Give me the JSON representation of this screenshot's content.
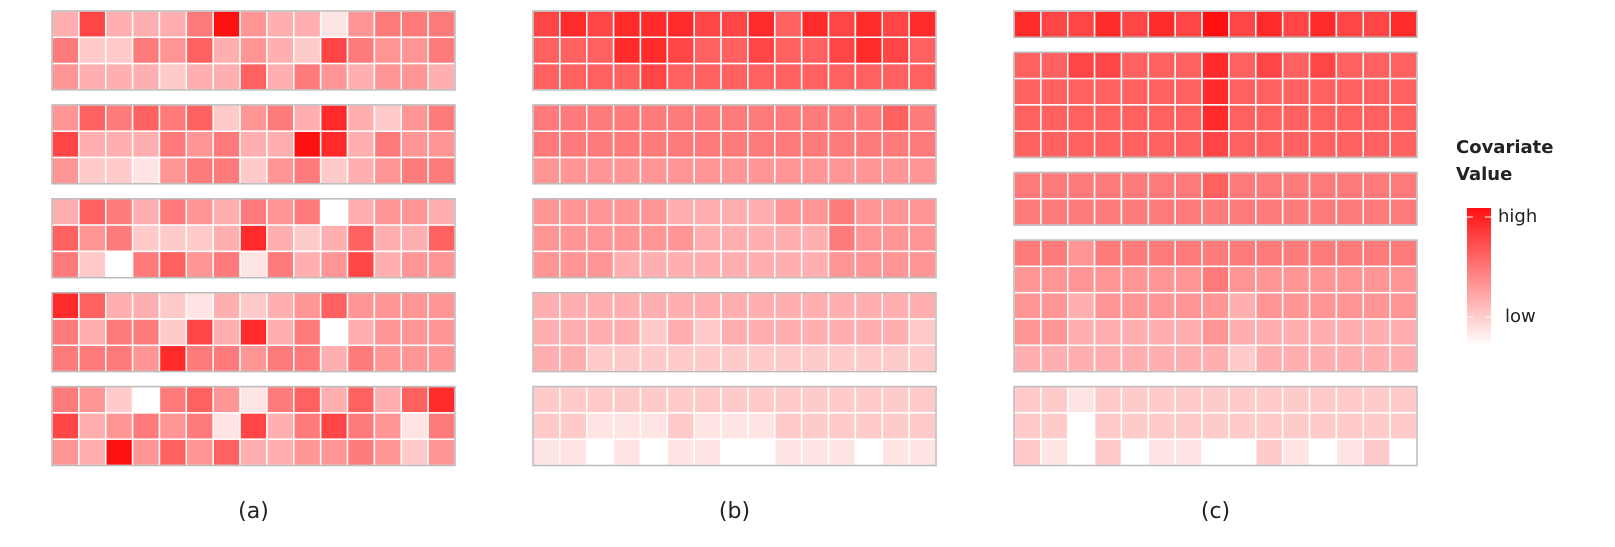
{
  "chart_data": [
    {
      "type": "heatmap",
      "label": "(a)",
      "blocks": [
        [
          [
            3,
            7,
            3,
            3,
            3,
            5,
            9,
            4,
            3,
            3,
            1,
            4,
            5,
            5,
            5
          ],
          [
            5,
            2,
            2,
            5,
            4,
            6,
            3,
            4,
            3,
            2,
            7,
            5,
            4,
            4,
            5
          ],
          [
            4,
            3,
            3,
            3,
            2,
            3,
            3,
            6,
            3,
            5,
            4,
            3,
            4,
            4,
            3
          ]
        ],
        [
          [
            4,
            6,
            5,
            6,
            5,
            6,
            2,
            4,
            5,
            3,
            8,
            3,
            2,
            4,
            5
          ],
          [
            7,
            3,
            3,
            3,
            5,
            4,
            5,
            3,
            3,
            9,
            8,
            3,
            5,
            4,
            4
          ],
          [
            4,
            2,
            2,
            1,
            4,
            5,
            5,
            2,
            4,
            5,
            2,
            3,
            4,
            5,
            5
          ]
        ],
        [
          [
            3,
            6,
            5,
            3,
            5,
            4,
            3,
            5,
            4,
            5,
            0,
            3,
            4,
            4,
            3
          ],
          [
            6,
            4,
            5,
            2,
            2,
            2,
            3,
            8,
            3,
            2,
            3,
            6,
            3,
            3,
            6
          ],
          [
            5,
            2,
            0,
            5,
            6,
            4,
            5,
            1,
            5,
            3,
            4,
            7,
            3,
            4,
            4
          ]
        ],
        [
          [
            8,
            6,
            3,
            3,
            2,
            1,
            3,
            2,
            3,
            4,
            6,
            4,
            4,
            4,
            4
          ],
          [
            5,
            3,
            5,
            5,
            2,
            7,
            3,
            8,
            3,
            5,
            0,
            3,
            4,
            4,
            4
          ],
          [
            5,
            5,
            5,
            4,
            8,
            5,
            5,
            4,
            5,
            5,
            3,
            5,
            4,
            4,
            4
          ]
        ],
        [
          [
            5,
            4,
            2,
            0,
            5,
            6,
            4,
            1,
            5,
            6,
            3,
            6,
            3,
            6,
            8
          ],
          [
            7,
            3,
            4,
            5,
            4,
            5,
            1,
            7,
            3,
            5,
            7,
            5,
            4,
            1,
            5
          ],
          [
            4,
            3,
            9,
            4,
            6,
            4,
            6,
            3,
            3,
            4,
            4,
            5,
            4,
            2,
            4
          ]
        ]
      ]
    },
    {
      "type": "heatmap",
      "label": "(b)",
      "blocks": [
        [
          [
            7,
            8,
            7,
            8,
            8,
            8,
            7,
            7,
            8,
            6,
            8,
            7,
            8,
            7,
            8
          ],
          [
            6,
            6,
            6,
            8,
            8,
            7,
            6,
            6,
            7,
            6,
            6,
            7,
            8,
            7,
            6
          ],
          [
            6,
            6,
            6,
            6,
            7,
            6,
            6,
            6,
            6,
            6,
            6,
            6,
            6,
            6,
            6
          ]
        ],
        [
          [
            5,
            5,
            5,
            5,
            5,
            5,
            5,
            5,
            5,
            5,
            5,
            5,
            5,
            6,
            5
          ],
          [
            5,
            5,
            5,
            5,
            5,
            5,
            5,
            5,
            5,
            5,
            5,
            5,
            5,
            5,
            5
          ],
          [
            4,
            4,
            4,
            4,
            4,
            4,
            4,
            4,
            4,
            4,
            4,
            4,
            4,
            4,
            4
          ]
        ],
        [
          [
            4,
            4,
            4,
            4,
            4,
            3,
            3,
            3,
            3,
            4,
            4,
            5,
            4,
            4,
            4
          ],
          [
            4,
            4,
            4,
            4,
            4,
            4,
            3,
            3,
            3,
            3,
            3,
            5,
            4,
            4,
            4
          ],
          [
            4,
            4,
            4,
            3,
            3,
            3,
            3,
            3,
            3,
            3,
            3,
            4,
            4,
            4,
            4
          ]
        ],
        [
          [
            3,
            3,
            3,
            3,
            3,
            3,
            3,
            3,
            3,
            3,
            3,
            3,
            3,
            3,
            3
          ],
          [
            3,
            3,
            3,
            3,
            2,
            3,
            2,
            3,
            3,
            3,
            3,
            3,
            3,
            3,
            2
          ],
          [
            3,
            3,
            2,
            2,
            2,
            2,
            2,
            2,
            2,
            2,
            2,
            2,
            2,
            2,
            2
          ]
        ],
        [
          [
            2,
            2,
            2,
            2,
            2,
            2,
            2,
            2,
            2,
            2,
            2,
            2,
            2,
            2,
            2
          ],
          [
            2,
            2,
            1,
            1,
            1,
            2,
            1,
            1,
            1,
            2,
            2,
            2,
            2,
            2,
            2
          ],
          [
            1,
            1,
            0,
            1,
            0,
            1,
            1,
            0,
            0,
            1,
            1,
            1,
            0,
            1,
            1
          ]
        ]
      ]
    },
    {
      "type": "heatmap",
      "label": "(c)",
      "blocks": [
        [
          [
            8,
            7,
            7,
            8,
            7,
            8,
            7,
            9,
            7,
            8,
            7,
            8,
            7,
            7,
            8
          ]
        ],
        [
          [
            6,
            6,
            7,
            7,
            6,
            6,
            6,
            8,
            6,
            7,
            6,
            7,
            6,
            6,
            6
          ],
          [
            6,
            6,
            6,
            6,
            6,
            6,
            6,
            8,
            6,
            6,
            6,
            6,
            6,
            6,
            6
          ],
          [
            6,
            6,
            6,
            6,
            6,
            6,
            6,
            8,
            6,
            6,
            6,
            6,
            6,
            6,
            6
          ],
          [
            6,
            6,
            6,
            6,
            6,
            6,
            6,
            7,
            6,
            6,
            6,
            6,
            6,
            6,
            6
          ]
        ],
        [
          [
            5,
            5,
            5,
            5,
            5,
            5,
            5,
            6,
            5,
            5,
            5,
            5,
            5,
            5,
            5
          ],
          [
            5,
            5,
            5,
            5,
            5,
            5,
            5,
            5,
            5,
            5,
            5,
            5,
            5,
            5,
            5
          ]
        ],
        [
          [
            5,
            5,
            4,
            5,
            5,
            5,
            5,
            5,
            5,
            5,
            5,
            5,
            5,
            5,
            5
          ],
          [
            4,
            4,
            4,
            4,
            4,
            4,
            4,
            5,
            4,
            4,
            4,
            4,
            4,
            4,
            4
          ],
          [
            4,
            4,
            3,
            4,
            4,
            4,
            4,
            4,
            3,
            4,
            4,
            4,
            4,
            4,
            4
          ],
          [
            4,
            4,
            3,
            3,
            3,
            3,
            3,
            4,
            3,
            3,
            3,
            3,
            3,
            3,
            3
          ],
          [
            3,
            3,
            3,
            3,
            3,
            3,
            3,
            3,
            2,
            3,
            3,
            3,
            3,
            3,
            3
          ]
        ],
        [
          [
            2,
            2,
            1,
            2,
            2,
            2,
            2,
            2,
            2,
            2,
            2,
            2,
            2,
            2,
            2
          ],
          [
            2,
            2,
            0,
            2,
            2,
            2,
            2,
            2,
            2,
            2,
            2,
            2,
            2,
            2,
            2
          ],
          [
            2,
            1,
            0,
            2,
            0,
            1,
            1,
            0,
            0,
            2,
            1,
            0,
            1,
            2,
            0
          ]
        ]
      ]
    }
  ],
  "scale": {
    "zlim": [
      0,
      9
    ],
    "low_color": "#ffffff",
    "high_color": "#ff1010"
  },
  "legend": {
    "title": [
      "Covariate",
      "Value"
    ],
    "high": "high",
    "low": "low"
  }
}
